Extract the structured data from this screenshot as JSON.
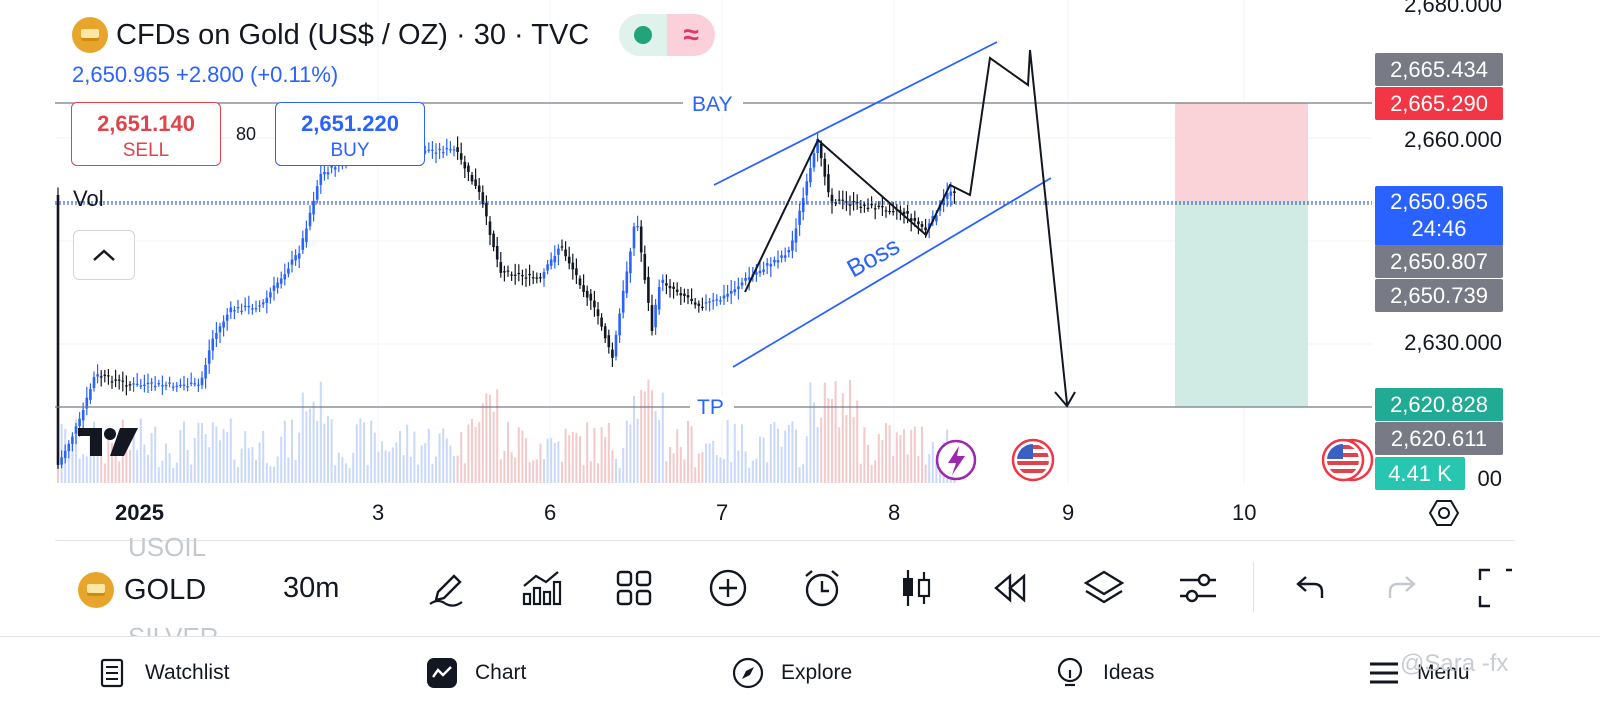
{
  "header": {
    "symbol_title": "CFDs on Gold (US$ / OZ) · 30 · TVC",
    "status_market_icon": "market-open-dot-icon",
    "status_wave_icon": "≈",
    "price_line": "2,650.965  +2.800 (+0.11%)"
  },
  "trade": {
    "sell_price": "2,651.140",
    "sell_label": "SELL",
    "buy_price": "2,651.220",
    "buy_label": "BUY",
    "spread": "80"
  },
  "indicators": {
    "vol_label": "Vol"
  },
  "annotations": {
    "entry_label": "BAY",
    "tp_label": "TP",
    "pattern_label": "Boss"
  },
  "price_axis": {
    "labels": [
      "2,680.000",
      "2,660.000",
      "2,630.000",
      "00"
    ],
    "tags": {
      "t1": "2,665.434",
      "t2": "2,665.290",
      "current_price": "2,650.965",
      "countdown": "24:46",
      "t4": "2,650.807",
      "t5": "2,650.739",
      "t6": "2,620.828",
      "t7": "2,620.611",
      "volume": "4.41 K"
    }
  },
  "time_axis": {
    "labels": [
      "2025",
      "3",
      "6",
      "7",
      "8",
      "9",
      "10"
    ]
  },
  "symbol_bar": {
    "prev_symbol": "USOIL",
    "symbol": "GOLD",
    "next_symbol": "SILVER",
    "interval": "30m"
  },
  "bottom_nav": {
    "watchlist": "Watchlist",
    "chart": "Chart",
    "explore": "Explore",
    "ideas": "Ideas",
    "menu": "Menu"
  },
  "watermark": "@Sara -fx",
  "colors": {
    "up": "#2962ff",
    "down": "#131722",
    "stop_zone": "#f9d3d8",
    "target_zone": "#cfebe4",
    "sell": "#e0434b",
    "buy": "#2962ff",
    "tag_gray": "#787b86",
    "tag_red": "#f23645",
    "tag_green": "#22ab94",
    "tag_teal": "#26c6b0"
  }
}
